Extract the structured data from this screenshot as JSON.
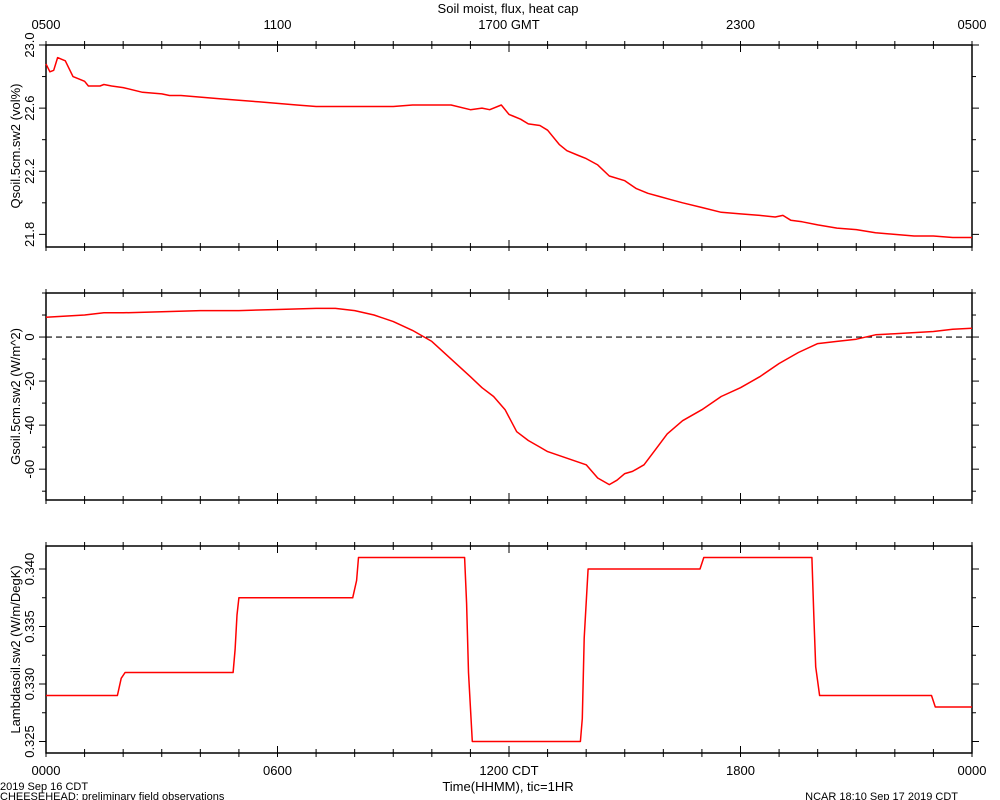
{
  "title": "Soil moist, flux, heat cap",
  "top_axis": {
    "ticks": [
      {
        "x": 0,
        "label": "0500"
      },
      {
        "x": 6,
        "label": "1100"
      },
      {
        "x": 12,
        "label": "1700 GMT"
      },
      {
        "x": 18,
        "label": "2300"
      },
      {
        "x": 24,
        "label": "0500"
      }
    ]
  },
  "bottom_axis": {
    "ticks": [
      {
        "x": 0,
        "label": "0000"
      },
      {
        "x": 6,
        "label": "0600"
      },
      {
        "x": 12,
        "label": "1200 CDT"
      },
      {
        "x": 18,
        "label": "1800"
      },
      {
        "x": 24,
        "label": "0000"
      }
    ],
    "xlabel": "Time(HHMM), tic=1HR"
  },
  "footer": {
    "date": "2019 Sep 16 CDT",
    "project": "CHEESEHEAD: preliminary field observations",
    "stamp": "NCAR 18:10 Sep 17 2019 CDT"
  },
  "colors": {
    "series": "#ff0000",
    "axes": "#000000",
    "zero_line": "#000000"
  },
  "chart_data": [
    {
      "type": "line",
      "ylabel": "Qsoil.5cm.sw2 (vol%)",
      "xlim": [
        0,
        24
      ],
      "ylim": [
        21.72,
        23.0
      ],
      "yticks": [
        21.8,
        22.2,
        22.6,
        23.0
      ],
      "ytick_labels": [
        "21.8",
        "22.2",
        "22.6",
        "23.0"
      ],
      "series": [
        {
          "x": [
            0,
            0.1,
            0.2,
            0.3,
            0.4,
            0.5,
            0.7,
            0.9,
            1.0,
            1.1,
            1.2,
            1.4,
            1.5,
            1.7,
            2.0,
            2.5,
            3.0,
            3.2,
            3.5,
            4.0,
            4.5,
            5.0,
            5.5,
            6.0,
            6.5,
            7.0,
            7.5,
            8.0,
            8.5,
            9.0,
            9.5,
            10.0,
            10.5,
            11.0,
            11.3,
            11.5,
            11.8,
            12.0,
            12.1,
            12.3,
            12.5,
            12.8,
            13.0,
            13.3,
            13.5,
            13.8,
            14.0,
            14.3,
            14.6,
            15.0,
            15.3,
            15.6,
            15.9,
            16.2,
            16.5,
            17.0,
            17.5,
            18.0,
            18.5,
            18.9,
            19.1,
            19.3,
            19.6,
            20.0,
            20.5,
            21.0,
            21.5,
            22.0,
            22.5,
            23.0,
            23.5,
            24.0
          ],
          "y": [
            22.88,
            22.83,
            22.84,
            22.92,
            22.91,
            22.9,
            22.8,
            22.78,
            22.77,
            22.74,
            22.74,
            22.74,
            22.75,
            22.74,
            22.73,
            22.7,
            22.69,
            22.68,
            22.68,
            22.67,
            22.66,
            22.65,
            22.64,
            22.63,
            22.62,
            22.61,
            22.61,
            22.61,
            22.61,
            22.61,
            22.62,
            22.62,
            22.62,
            22.59,
            22.6,
            22.59,
            22.62,
            22.56,
            22.55,
            22.53,
            22.5,
            22.49,
            22.46,
            22.37,
            22.33,
            22.3,
            22.28,
            22.24,
            22.17,
            22.14,
            22.09,
            22.06,
            22.04,
            22.02,
            22.0,
            21.97,
            21.94,
            21.93,
            21.92,
            21.91,
            21.92,
            21.89,
            21.88,
            21.86,
            21.84,
            21.83,
            21.81,
            21.8,
            21.79,
            21.79,
            21.78,
            21.78
          ]
        }
      ]
    },
    {
      "type": "line",
      "ylabel": "Gsoil.5cm.sw2 (W/m^2)",
      "xlim": [
        0,
        24
      ],
      "ylim": [
        -74,
        20
      ],
      "yticks": [
        -60,
        -40,
        -20,
        0
      ],
      "ytick_labels": [
        "-60",
        "-40",
        "-20",
        "0"
      ],
      "reference_line": 0,
      "series": [
        {
          "x": [
            0,
            0.5,
            1.0,
            1.5,
            2.0,
            3.0,
            4.0,
            5.0,
            6.0,
            7.0,
            7.5,
            8.0,
            8.5,
            9.0,
            9.5,
            10.0,
            10.5,
            11.0,
            11.3,
            11.6,
            11.9,
            12.2,
            12.5,
            12.8,
            13.0,
            13.5,
            14.0,
            14.3,
            14.6,
            14.8,
            15.0,
            15.2,
            15.5,
            15.8,
            16.1,
            16.5,
            17.0,
            17.5,
            18.0,
            18.5,
            19.0,
            19.5,
            20.0,
            20.5,
            21.0,
            21.5,
            22.0,
            22.5,
            23.0,
            23.5,
            24.0
          ],
          "y": [
            9,
            9.5,
            10,
            11,
            11,
            11.5,
            12,
            12,
            12.5,
            13,
            13,
            12,
            10,
            7,
            3,
            -2,
            -10,
            -18,
            -23,
            -27,
            -33,
            -43,
            -47,
            -50,
            -52,
            -55,
            -58,
            -64,
            -67,
            -65,
            -62,
            -61,
            -58,
            -51,
            -44,
            -38,
            -33,
            -27,
            -23,
            -18,
            -12,
            -7,
            -3,
            -2,
            -1,
            1,
            1.5,
            2,
            2.5,
            3.5,
            4
          ]
        }
      ]
    },
    {
      "type": "line",
      "ylabel": "Lambdasoil.sw2 (W/m/DegK)",
      "xlim": [
        0,
        24
      ],
      "ylim": [
        0.324,
        0.342
      ],
      "yticks": [
        0.325,
        0.33,
        0.335,
        0.34
      ],
      "ytick_labels": [
        "0.325",
        "0.330",
        "0.335",
        "0.340"
      ],
      "series": [
        {
          "x": [
            0,
            1.85,
            1.95,
            2.05,
            4.85,
            4.9,
            4.95,
            5.0,
            7.95,
            8.05,
            8.1,
            10.85,
            10.9,
            10.95,
            11.05,
            13.85,
            13.9,
            13.95,
            14.05,
            16.95,
            17.05,
            19.85,
            19.9,
            19.95,
            20.05,
            22.95,
            23.05,
            23.15,
            24.0
          ],
          "y": [
            0.329,
            0.329,
            0.3305,
            0.331,
            0.331,
            0.333,
            0.336,
            0.3375,
            0.3375,
            0.339,
            0.341,
            0.341,
            0.337,
            0.331,
            0.325,
            0.325,
            0.327,
            0.334,
            0.34,
            0.34,
            0.341,
            0.341,
            0.336,
            0.3315,
            0.329,
            0.329,
            0.328,
            0.328,
            0.328
          ]
        }
      ]
    }
  ]
}
